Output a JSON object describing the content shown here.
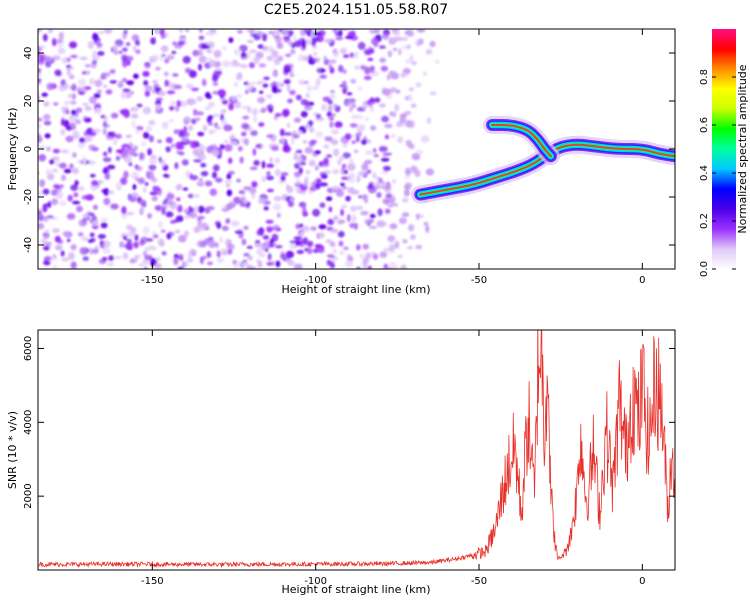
{
  "title": "C2E5.2024.151.05.58.R07",
  "chart_data": [
    {
      "type": "heatmap",
      "xlabel": "Height of straight line (km)",
      "ylabel": "Frequency (Hz)",
      "xlim": [
        -185,
        10
      ],
      "ylim": [
        -50,
        50
      ],
      "x_ticks": [
        -150,
        -100,
        -50,
        0
      ],
      "y_ticks": [
        -40,
        -20,
        0,
        20,
        40
      ],
      "grid": false,
      "noise_region": {
        "x": [
          -185,
          -65
        ],
        "y": [
          -50,
          50
        ]
      },
      "signal_track": [
        {
          "x": -68,
          "y": -19
        },
        {
          "x": -60,
          "y": -17
        },
        {
          "x": -52,
          "y": -15
        },
        {
          "x": -45,
          "y": -12
        },
        {
          "x": -38,
          "y": -9
        },
        {
          "x": -33,
          "y": -6
        },
        {
          "x": -29,
          "y": -2
        },
        {
          "x": -25,
          "y": 1
        },
        {
          "x": -20,
          "y": 2
        },
        {
          "x": -14,
          "y": 1
        },
        {
          "x": -8,
          "y": 0
        },
        {
          "x": 0,
          "y": 0
        },
        {
          "x": 5,
          "y": -2
        },
        {
          "x": 10,
          "y": -3
        }
      ],
      "signal_branch": [
        {
          "x": -46,
          "y": 10
        },
        {
          "x": -40,
          "y": 10
        },
        {
          "x": -35,
          "y": 8
        },
        {
          "x": -32,
          "y": 4
        },
        {
          "x": -30,
          "y": 0
        },
        {
          "x": -28,
          "y": -3
        }
      ],
      "colorbar": {
        "label": "Normalized spectral amplitude",
        "range": [
          0,
          1
        ],
        "ticks": [
          "0.0",
          "0.2",
          "0.4",
          "0.6",
          "0.8"
        ],
        "colormap": [
          "#ffffff",
          "#e0c8f8",
          "#9b30ff",
          "#4a00e8",
          "#0000ff",
          "#00c8ff",
          "#00ffa0",
          "#00ff00",
          "#c8ff00",
          "#ffff00",
          "#ff8c00",
          "#ff0000",
          "#ff1080"
        ]
      }
    },
    {
      "type": "line",
      "xlabel": "Height of straight line (km)",
      "ylabel": "SNR (10 * v/v)",
      "xlim": [
        -185,
        10
      ],
      "ylim": [
        0,
        6500
      ],
      "x_ticks": [
        -150,
        -100,
        -50,
        0
      ],
      "y_ticks": [
        2000,
        4000,
        6000
      ],
      "grid": false,
      "color": "#e8302a",
      "series": [
        {
          "x": [
            -185,
            -160,
            -130,
            -100,
            -80,
            -65,
            -57,
            -52,
            -48,
            -45,
            -43,
            -41,
            -39,
            -37,
            -35,
            -33,
            -32,
            -31,
            -30,
            -29,
            -28,
            -27,
            -26,
            -24,
            -22,
            -20,
            -19,
            -17,
            -15,
            -13,
            -11,
            -9,
            -7,
            -5,
            -3,
            -1,
            0,
            2,
            4,
            6,
            7,
            8,
            9,
            10
          ],
          "y": [
            150,
            160,
            150,
            160,
            170,
            200,
            300,
            400,
            500,
            1100,
            2000,
            2800,
            3300,
            1500,
            4200,
            2000,
            5500,
            6400,
            3800,
            6000,
            2000,
            1000,
            300,
            400,
            900,
            2100,
            3700,
            1800,
            3200,
            1600,
            3800,
            2200,
            4500,
            3200,
            4800,
            4000,
            5100,
            3400,
            5200,
            4400,
            2800,
            1500,
            3600,
            2000
          ]
        }
      ]
    }
  ]
}
